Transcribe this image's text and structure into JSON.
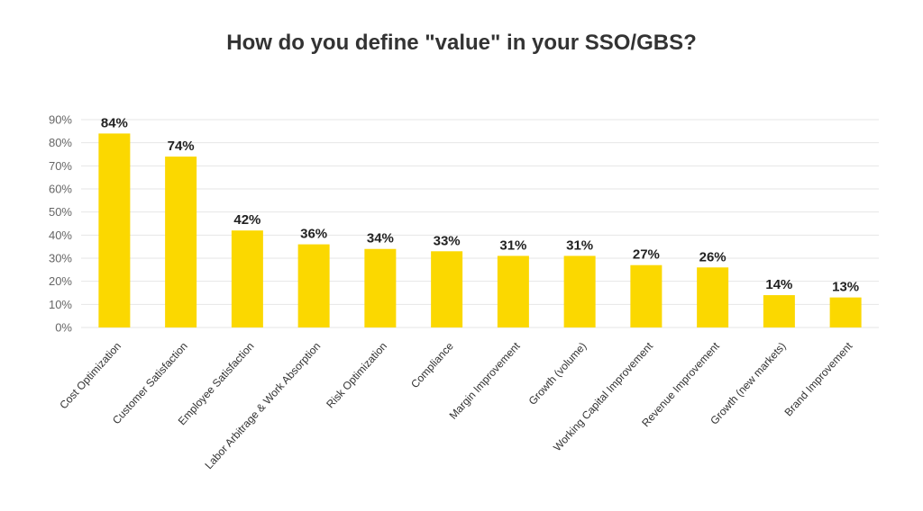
{
  "chart_data": {
    "type": "bar",
    "title": "How do you define \"value\" in your SSO/GBS?",
    "xlabel": "",
    "ylabel": "",
    "categories": [
      "Cost Optimization",
      "Customer Satisfaction",
      "Employee Satisfaction",
      "Labor Arbitrage & Work Absorption",
      "Risk Optimization",
      "Compliance",
      "Margin Improvement",
      "Growth (volume)",
      "Working Capital Improvement",
      "Revenue Improvement",
      "Growth (new markets)",
      "Brand Improvement"
    ],
    "values": [
      84,
      74,
      42,
      36,
      34,
      33,
      31,
      31,
      27,
      26,
      14,
      13
    ],
    "data_labels": [
      "84%",
      "74%",
      "42%",
      "36%",
      "34%",
      "33%",
      "31%",
      "31%",
      "27%",
      "26%",
      "14%",
      "13%"
    ],
    "ylim": [
      0,
      90
    ],
    "yticks": [
      0,
      10,
      20,
      30,
      40,
      50,
      60,
      70,
      80,
      90
    ],
    "ytick_labels": [
      "0%",
      "10%",
      "20%",
      "30%",
      "40%",
      "50%",
      "60%",
      "70%",
      "80%",
      "90%"
    ],
    "grid": true,
    "bar_color": "#FBD800",
    "grid_color": "#e6e6e6"
  }
}
